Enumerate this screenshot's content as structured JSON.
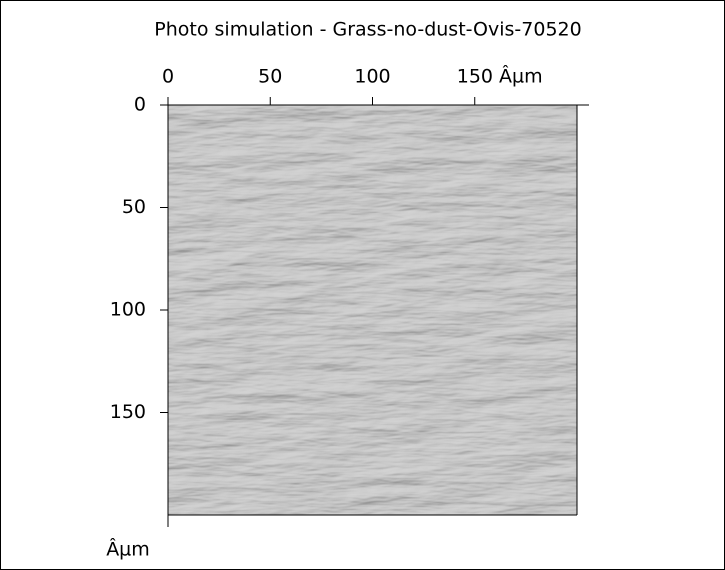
{
  "chart_data": {
    "type": "image",
    "title": "Photo simulation - Grass-no-dust-Ovis-70520",
    "xlim": [
      0,
      200
    ],
    "ylim": [
      0,
      200
    ],
    "xticks": [
      0,
      50,
      100,
      {
        "value": 150,
        "label": "150 Âµm"
      }
    ],
    "yticks": [
      0,
      50,
      100,
      150
    ],
    "ylabel": "Âµm"
  }
}
